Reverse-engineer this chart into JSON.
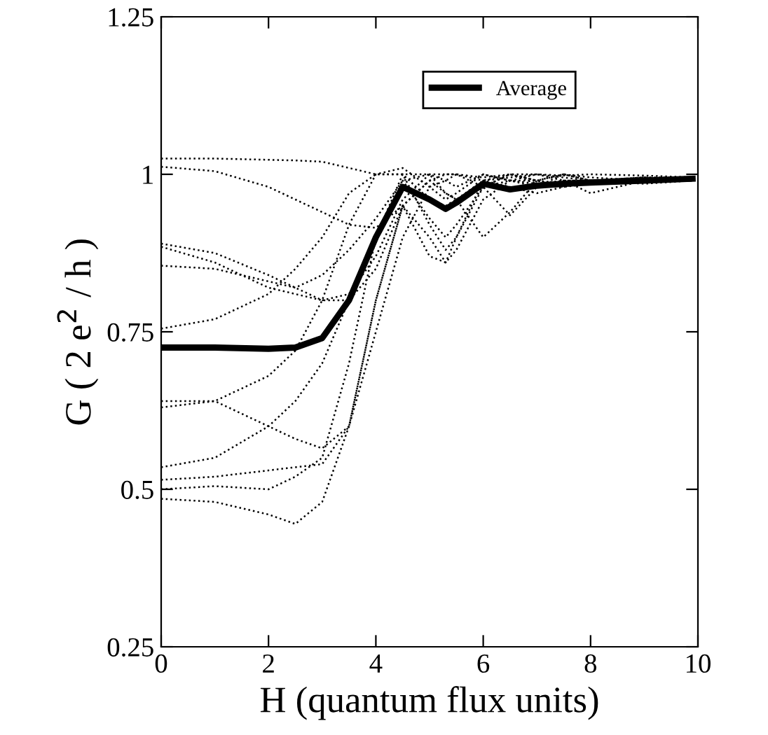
{
  "chart_data": {
    "type": "line",
    "xlabel": "H (quantum flux units)",
    "ylabel": "G ( 2 e$^{2}$ / h )",
    "xlim": [
      0,
      10
    ],
    "ylim": [
      0.25,
      1.25
    ],
    "xticks": [
      0,
      2,
      4,
      6,
      8,
      10
    ],
    "yticks": [
      0.25,
      0.5,
      0.75,
      1,
      1.25
    ],
    "grid": false,
    "legend": "top right",
    "marker": "none",
    "x": [
      0,
      1,
      2,
      2.5,
      3,
      3.5,
      4,
      4.5,
      5,
      5.3,
      5.5,
      6,
      6.5,
      7,
      7.5,
      8,
      9,
      9.9
    ],
    "series": [
      {
        "color": "#000000",
        "line_style": "dotted",
        "values": [
          1.025,
          1.025,
          1.023,
          1.022,
          1.02,
          1.01,
          1.0,
          1.0,
          1.0,
          1.0,
          1.0,
          0.995,
          1.0,
          1.0,
          0.998,
          1.0,
          0.998,
          0.995
        ]
      },
      {
        "color": "#000000",
        "line_style": "dotted",
        "values": [
          1.012,
          1.005,
          0.98,
          0.96,
          0.94,
          0.92,
          0.915,
          0.95,
          0.99,
          1.0,
          1.0,
          0.99,
          0.995,
          1.0,
          0.995,
          0.99,
          0.995,
          0.995
        ]
      },
      {
        "color": "#000000",
        "line_style": "dotted",
        "values": [
          0.89,
          0.875,
          0.84,
          0.82,
          0.8,
          0.81,
          0.87,
          0.96,
          1.0,
          0.99,
          0.98,
          1.0,
          0.99,
          0.99,
          1.0,
          0.995,
          0.99,
          0.99
        ]
      },
      {
        "color": "#000000",
        "line_style": "dotted",
        "values": [
          0.885,
          0.86,
          0.82,
          0.81,
          0.8,
          0.8,
          0.85,
          0.95,
          0.99,
          0.97,
          0.96,
          0.98,
          1.0,
          0.99,
          0.985,
          0.99,
          0.995,
          0.99
        ]
      },
      {
        "color": "#000000",
        "line_style": "dotted",
        "values": [
          0.855,
          0.85,
          0.83,
          0.82,
          0.84,
          0.88,
          0.93,
          0.99,
          1.0,
          0.97,
          0.96,
          0.9,
          0.94,
          0.99,
          1.0,
          0.99,
          0.99,
          0.995
        ]
      },
      {
        "color": "#000000",
        "line_style": "dotted",
        "values": [
          0.755,
          0.77,
          0.81,
          0.85,
          0.9,
          0.97,
          1.0,
          1.0,
          0.96,
          0.95,
          0.96,
          0.99,
          1.0,
          0.99,
          0.98,
          0.99,
          0.99,
          0.99
        ]
      },
      {
        "color": "#000000",
        "line_style": "dotted",
        "values": [
          0.64,
          0.64,
          0.6,
          0.58,
          0.565,
          0.6,
          0.75,
          0.9,
          0.98,
          0.99,
          1.0,
          0.98,
          0.935,
          0.98,
          1.0,
          0.99,
          0.985,
          0.99
        ]
      },
      {
        "color": "#000000",
        "line_style": "dotted",
        "values": [
          0.63,
          0.64,
          0.68,
          0.72,
          0.8,
          0.92,
          1.0,
          1.01,
          0.98,
          0.96,
          0.97,
          1.0,
          0.99,
          0.985,
          0.99,
          0.97,
          0.99,
          0.99
        ]
      },
      {
        "color": "#000000",
        "line_style": "dotted",
        "values": [
          0.535,
          0.55,
          0.6,
          0.64,
          0.7,
          0.8,
          0.9,
          0.99,
          0.93,
          0.9,
          0.92,
          0.98,
          0.99,
          1.0,
          0.99,
          0.99,
          0.99,
          0.995
        ]
      },
      {
        "color": "#000000",
        "line_style": "dotted",
        "values": [
          0.515,
          0.52,
          0.53,
          0.535,
          0.54,
          0.6,
          0.8,
          0.95,
          0.9,
          0.86,
          0.9,
          0.98,
          1.0,
          0.985,
          0.98,
          0.985,
          0.99,
          0.99
        ]
      },
      {
        "color": "#000000",
        "line_style": "dotted",
        "values": [
          0.5,
          0.505,
          0.5,
          0.52,
          0.55,
          0.7,
          0.9,
          1.0,
          0.92,
          0.88,
          0.9,
          0.99,
          0.98,
          0.97,
          0.98,
          0.99,
          0.995,
          0.99
        ]
      },
      {
        "color": "#000000",
        "line_style": "dotted",
        "values": [
          0.485,
          0.48,
          0.46,
          0.445,
          0.48,
          0.6,
          0.8,
          0.95,
          0.87,
          0.86,
          0.88,
          0.96,
          0.99,
          0.98,
          0.99,
          0.99,
          0.99,
          0.99
        ]
      },
      {
        "name": "Average",
        "color": "#000000",
        "line_style": "solid",
        "values": [
          0.725,
          0.725,
          0.723,
          0.725,
          0.74,
          0.8,
          0.9,
          0.98,
          0.96,
          0.945,
          0.955,
          0.985,
          0.976,
          0.982,
          0.985,
          0.987,
          0.99,
          0.993
        ]
      }
    ]
  }
}
